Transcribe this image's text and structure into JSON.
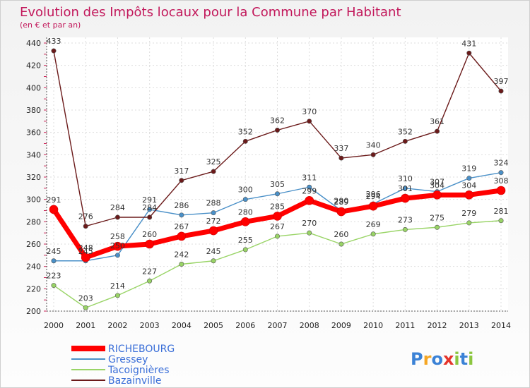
{
  "chart_data": {
    "type": "line",
    "title": "Evolution des Impôts locaux pour la Commune par Habitant",
    "subtitle": "(en € et par an)",
    "xlabel": "",
    "ylabel": "",
    "ylim": [
      200,
      440
    ],
    "yticks": [
      200,
      220,
      240,
      260,
      280,
      300,
      320,
      340,
      360,
      380,
      400,
      420,
      440
    ],
    "x": [
      "2000",
      "2001",
      "2002",
      "2003",
      "2004",
      "2005",
      "2006",
      "2007",
      "2008",
      "2009",
      "2010",
      "2011",
      "2012",
      "2013",
      "2014"
    ],
    "grid": true,
    "series": [
      {
        "name": "RICHEBOURG",
        "color": "#ff0000",
        "emphasis": true,
        "values": [
          291,
          248,
          258,
          260,
          267,
          272,
          280,
          285,
          299,
          289,
          294,
          301,
          304,
          304,
          308
        ]
      },
      {
        "name": "Gressey",
        "color": "#4a90c8",
        "emphasis": false,
        "values": [
          245,
          245,
          250,
          291,
          286,
          288,
          300,
          305,
          311,
          290,
          296,
          310,
          307,
          319,
          324
        ]
      },
      {
        "name": "Tacoignières",
        "color": "#99d466",
        "emphasis": false,
        "values": [
          223,
          203,
          214,
          227,
          242,
          245,
          255,
          267,
          270,
          260,
          269,
          273,
          275,
          279,
          281
        ]
      },
      {
        "name": "Bazainville",
        "color": "#6b1a1a",
        "emphasis": false,
        "values": [
          433,
          276,
          284,
          284,
          317,
          325,
          352,
          362,
          370,
          337,
          340,
          352,
          361,
          431,
          397
        ]
      }
    ]
  },
  "brand": {
    "name": "Proxiti",
    "letters": [
      "P",
      "r",
      "o",
      "x",
      "i",
      "t",
      "i"
    ],
    "colors": [
      "#3b82d6",
      "#f5a623",
      "#3b82d6",
      "#e5332a",
      "#8cc63f",
      "#3b82d6",
      "#8cc63f"
    ]
  }
}
